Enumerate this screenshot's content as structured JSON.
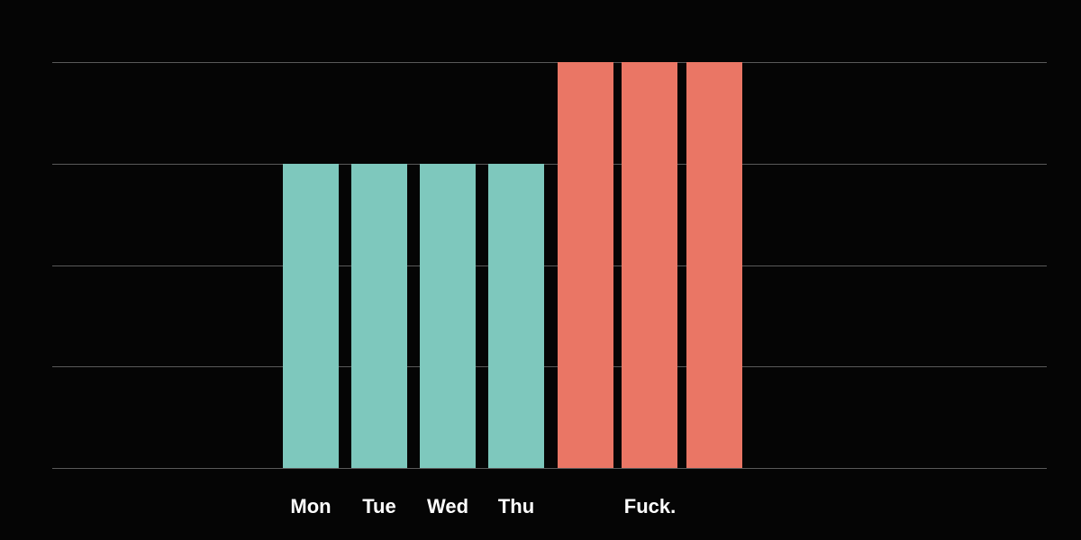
{
  "colors": {
    "background": "#050505",
    "gridline": "#5a5a5a",
    "label": "#ffffff",
    "weekday_bar": "#7ec8bd",
    "weekend_bar": "#ea7665"
  },
  "chart_data": {
    "type": "bar",
    "title": "",
    "xlabel": "",
    "ylabel": "",
    "grid": true,
    "y_axis_labels_shown": false,
    "ylim": [
      0,
      4
    ],
    "gridlines_at": [
      0,
      1,
      2,
      3,
      4
    ],
    "bars": [
      {
        "value": 3,
        "color_key": "weekday_bar"
      },
      {
        "value": 3,
        "color_key": "weekday_bar"
      },
      {
        "value": 3,
        "color_key": "weekday_bar"
      },
      {
        "value": 3,
        "color_key": "weekday_bar"
      },
      {
        "value": 4,
        "color_key": "weekend_bar"
      },
      {
        "value": 4,
        "color_key": "weekend_bar"
      },
      {
        "value": 4,
        "color_key": "weekend_bar"
      }
    ],
    "tick_labels": [
      {
        "text": "Mon",
        "bars": [
          0
        ]
      },
      {
        "text": "Tue",
        "bars": [
          1
        ]
      },
      {
        "text": "Wed",
        "bars": [
          2
        ]
      },
      {
        "text": "Thu",
        "bars": [
          3
        ]
      },
      {
        "text": "Fuck.",
        "bars": [
          4,
          5,
          6
        ]
      }
    ]
  }
}
